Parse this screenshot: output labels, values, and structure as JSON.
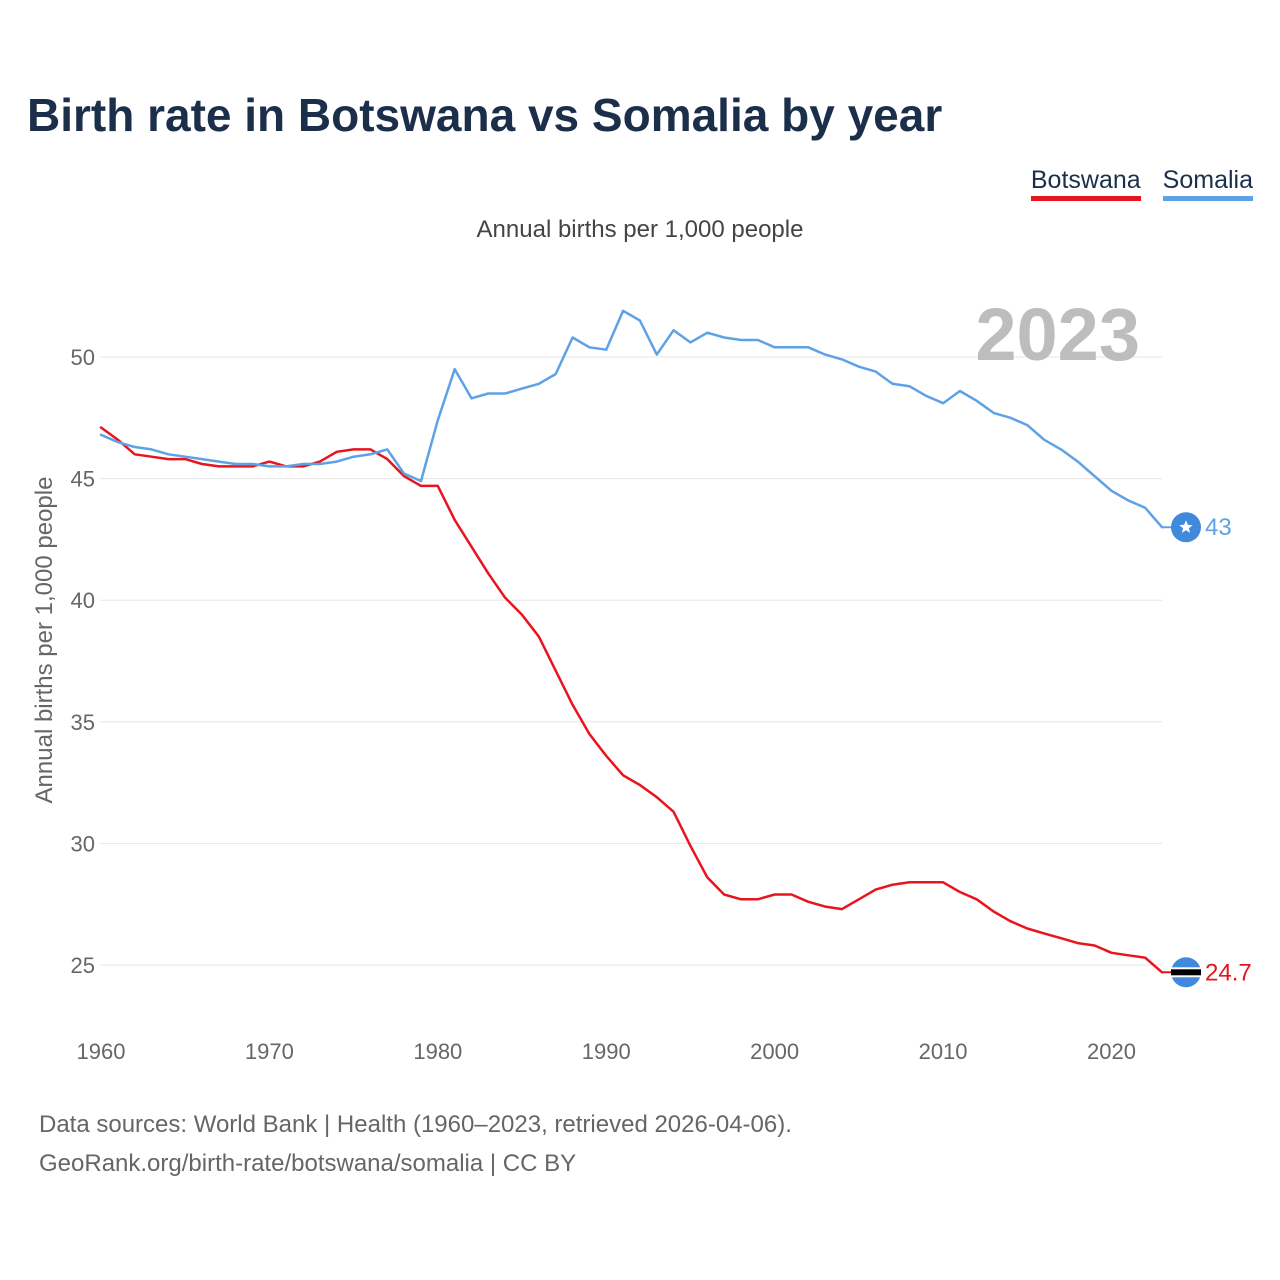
{
  "title": "Birth rate in Botswana vs Somalia by year",
  "subtitle": "Annual births per 1,000 people",
  "legend": [
    {
      "label": "Botswana",
      "color": "#e8141e"
    },
    {
      "label": "Somalia",
      "color": "#5ea2e5"
    }
  ],
  "footer": {
    "line1": "Data sources: World Bank | Health (1960–2023, retrieved 2026-04-06).",
    "line2": "GeoRank.org/birth-rate/botswana/somalia | CC BY"
  },
  "chart_data": {
    "type": "line",
    "title": "Birth rate in Botswana vs Somalia by year",
    "subtitle": "Annual births per 1,000 people",
    "xlabel": "",
    "ylabel": "Annual births per 1,000 people",
    "xlim": [
      1960,
      2023
    ],
    "ylim": [
      23,
      53
    ],
    "yticks": [
      25,
      30,
      35,
      40,
      45,
      50
    ],
    "xticks": [
      1960,
      1970,
      1980,
      1990,
      2000,
      2010,
      2020
    ],
    "grid": true,
    "legend_position": "top-right",
    "year_label": "2023",
    "x": [
      1960,
      1961,
      1962,
      1963,
      1964,
      1965,
      1966,
      1967,
      1968,
      1969,
      1970,
      1971,
      1972,
      1973,
      1974,
      1975,
      1976,
      1977,
      1978,
      1979,
      1980,
      1981,
      1982,
      1983,
      1984,
      1985,
      1986,
      1987,
      1988,
      1989,
      1990,
      1991,
      1992,
      1993,
      1994,
      1995,
      1996,
      1997,
      1998,
      1999,
      2000,
      2001,
      2002,
      2003,
      2004,
      2005,
      2006,
      2007,
      2008,
      2009,
      2010,
      2011,
      2012,
      2013,
      2014,
      2015,
      2016,
      2017,
      2018,
      2019,
      2020,
      2021,
      2022,
      2023
    ],
    "series": [
      {
        "name": "Botswana",
        "color": "#e8141e",
        "end_label": "24.7",
        "values": [
          47.1,
          46.6,
          46.0,
          45.9,
          45.8,
          45.8,
          45.6,
          45.5,
          45.5,
          45.5,
          45.7,
          45.5,
          45.5,
          45.7,
          46.1,
          46.2,
          46.2,
          45.8,
          45.1,
          44.7,
          44.7,
          43.3,
          42.2,
          41.1,
          40.1,
          39.4,
          38.5,
          37.1,
          35.7,
          34.5,
          33.6,
          32.8,
          32.4,
          31.9,
          31.3,
          29.9,
          28.6,
          27.9,
          27.7,
          27.7,
          27.9,
          27.9,
          27.6,
          27.4,
          27.3,
          27.7,
          28.1,
          28.3,
          28.4,
          28.4,
          28.4,
          28.0,
          27.7,
          27.2,
          26.8,
          26.5,
          26.3,
          26.1,
          25.9,
          25.8,
          25.5,
          25.4,
          25.3,
          24.7
        ]
      },
      {
        "name": "Somalia",
        "color": "#5ea2e5",
        "end_label": "43",
        "values": [
          46.8,
          46.5,
          46.3,
          46.2,
          46.0,
          45.9,
          45.8,
          45.7,
          45.6,
          45.6,
          45.5,
          45.5,
          45.6,
          45.6,
          45.7,
          45.9,
          46.0,
          46.2,
          45.2,
          44.9,
          47.4,
          49.5,
          48.3,
          48.5,
          48.5,
          48.7,
          48.9,
          49.3,
          50.8,
          50.4,
          50.3,
          51.9,
          51.5,
          50.1,
          51.1,
          50.6,
          51.0,
          50.8,
          50.7,
          50.7,
          50.4,
          50.4,
          50.4,
          50.1,
          49.9,
          49.6,
          49.4,
          48.9,
          48.8,
          48.4,
          48.1,
          48.6,
          48.2,
          47.7,
          47.5,
          47.2,
          46.6,
          46.2,
          45.7,
          45.1,
          44.5,
          44.1,
          43.8,
          43.0
        ]
      }
    ]
  }
}
